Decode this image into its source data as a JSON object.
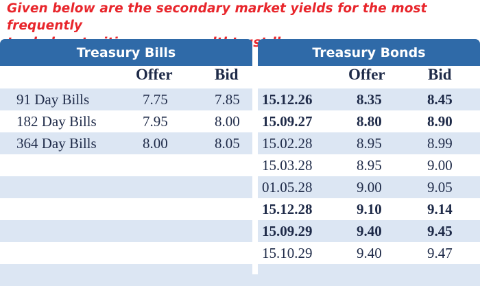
{
  "caption": {
    "line1": "Given below are the secondary market yields for the most frequently",
    "line2": "traded maturities, www.wealthtrust.lk"
  },
  "bills": {
    "title": "Treasury Bills",
    "offer_label": "Offer",
    "bid_label": "Bid",
    "rows": [
      {
        "name": "91 Day Bills",
        "offer": "7.75",
        "bid": "7.85"
      },
      {
        "name": "182 Day Bills",
        "offer": "7.95",
        "bid": "8.00"
      },
      {
        "name": "364 Day Bills",
        "offer": "8.00",
        "bid": "8.05"
      }
    ]
  },
  "bonds": {
    "title": "Treasury Bonds",
    "offer_label": "Offer",
    "bid_label": "Bid",
    "rows": [
      {
        "maturity": "15.12.26",
        "offer": "8.35",
        "bid": "8.45",
        "bold": true
      },
      {
        "maturity": "15.09.27",
        "offer": "8.80",
        "bid": "8.90",
        "bold": true
      },
      {
        "maturity": "15.02.28",
        "offer": "8.95",
        "bid": "8.99",
        "bold": false
      },
      {
        "maturity": "15.03.28",
        "offer": "8.95",
        "bid": "9.00",
        "bold": false
      },
      {
        "maturity": "01.05.28",
        "offer": "9.00",
        "bid": "9.05",
        "bold": false
      },
      {
        "maturity": "15.12.28",
        "offer": "9.10",
        "bid": "9.14",
        "bold": true
      },
      {
        "maturity": "15.09.29",
        "offer": "9.40",
        "bid": "9.45",
        "bold": true
      },
      {
        "maturity": "15.10.29",
        "offer": "9.40",
        "bid": "9.47",
        "bold": false
      }
    ]
  },
  "colors": {
    "header_bg": "#2f6aa8",
    "row_shade": "#dce6f3",
    "caption_text": "#e8262c",
    "table_text": "#1e2a48"
  }
}
